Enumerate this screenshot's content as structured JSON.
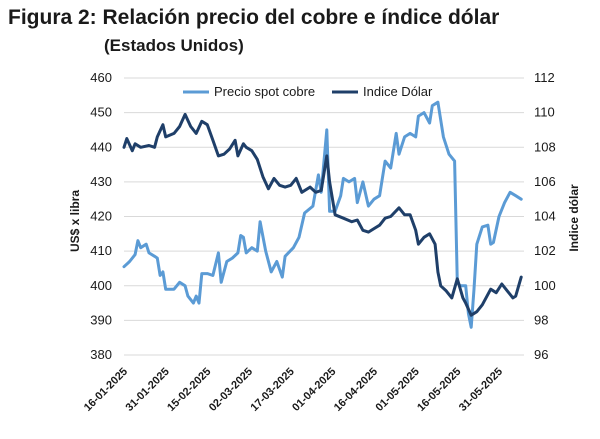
{
  "chart_data": {
    "type": "line",
    "title": "Figura 2: Relación precio del cobre e índice dólar",
    "subtitle": "(Estados Unidos)",
    "ylabel": "US$ x libra",
    "y2label": "Indice dólar",
    "ylim": [
      380,
      460
    ],
    "y2lim": [
      96,
      112
    ],
    "yticks": [
      380,
      390,
      400,
      410,
      420,
      430,
      440,
      450,
      460
    ],
    "y2ticks": [
      96,
      98,
      100,
      102,
      104,
      106,
      108,
      110,
      112
    ],
    "xlim": [
      "2025-01-16",
      "2025-06-09"
    ],
    "xticks": [
      "16-01-2025",
      "31-01-2025",
      "15-02-2025",
      "02-03-2025",
      "17-03-2025",
      "01-04-2025",
      "16-04-2025",
      "01-05-2025",
      "16-05-2025",
      "31-05-2025"
    ],
    "xtick_dates": [
      "2025-01-16",
      "2025-01-31",
      "2025-02-15",
      "2025-03-02",
      "2025-03-17",
      "2025-04-01",
      "2025-04-16",
      "2025-05-01",
      "2025-05-16",
      "2025-05-31"
    ],
    "grid": "horizontal",
    "legend": "top",
    "series": [
      {
        "name": "Precio spot cobre",
        "axis": "left",
        "color": "#5b9bd5",
        "points": [
          [
            "2025-01-16",
            405.5
          ],
          [
            "2025-01-18",
            407
          ],
          [
            "2025-01-20",
            409
          ],
          [
            "2025-01-21",
            413
          ],
          [
            "2025-01-22",
            411
          ],
          [
            "2025-01-24",
            412
          ],
          [
            "2025-01-25",
            409.5
          ],
          [
            "2025-01-27",
            408.5
          ],
          [
            "2025-01-28",
            408
          ],
          [
            "2025-01-29",
            403
          ],
          [
            "2025-01-30",
            404
          ],
          [
            "2025-01-31",
            399
          ],
          [
            "2025-02-03",
            399
          ],
          [
            "2025-02-05",
            401
          ],
          [
            "2025-02-07",
            400
          ],
          [
            "2025-02-08",
            397
          ],
          [
            "2025-02-10",
            395
          ],
          [
            "2025-02-11",
            397
          ],
          [
            "2025-02-12",
            395
          ],
          [
            "2025-02-13",
            403.5
          ],
          [
            "2025-02-15",
            403.5
          ],
          [
            "2025-02-17",
            403
          ],
          [
            "2025-02-19",
            409.5
          ],
          [
            "2025-02-20",
            401
          ],
          [
            "2025-02-22",
            407
          ],
          [
            "2025-02-24",
            408
          ],
          [
            "2025-02-26",
            409.5
          ],
          [
            "2025-02-27",
            414.5
          ],
          [
            "2025-02-28",
            414
          ],
          [
            "2025-03-01",
            409.5
          ],
          [
            "2025-03-03",
            411
          ],
          [
            "2025-03-05",
            410
          ],
          [
            "2025-03-06",
            418.5
          ],
          [
            "2025-03-08",
            410
          ],
          [
            "2025-03-10",
            404
          ],
          [
            "2025-03-12",
            407
          ],
          [
            "2025-03-14",
            402.5
          ],
          [
            "2025-03-15",
            408.5
          ],
          [
            "2025-03-18",
            411
          ],
          [
            "2025-03-20",
            414
          ],
          [
            "2025-03-22",
            421
          ],
          [
            "2025-03-25",
            423
          ],
          [
            "2025-03-27",
            432
          ],
          [
            "2025-03-28",
            427
          ],
          [
            "2025-03-30",
            445
          ],
          [
            "2025-03-31",
            421.5
          ],
          [
            "2025-04-02",
            421.5
          ],
          [
            "2025-04-04",
            426
          ],
          [
            "2025-04-05",
            431
          ],
          [
            "2025-04-07",
            430
          ],
          [
            "2025-04-09",
            431
          ],
          [
            "2025-04-10",
            424
          ],
          [
            "2025-04-12",
            430
          ],
          [
            "2025-04-14",
            423
          ],
          [
            "2025-04-16",
            425
          ],
          [
            "2025-04-18",
            426
          ],
          [
            "2025-04-20",
            436
          ],
          [
            "2025-04-22",
            434
          ],
          [
            "2025-04-24",
            444
          ],
          [
            "2025-04-25",
            438
          ],
          [
            "2025-04-27",
            443
          ],
          [
            "2025-04-29",
            444
          ],
          [
            "2025-05-01",
            443
          ],
          [
            "2025-05-02",
            449
          ],
          [
            "2025-05-04",
            450
          ],
          [
            "2025-05-06",
            447
          ],
          [
            "2025-05-07",
            452
          ],
          [
            "2025-05-09",
            453
          ],
          [
            "2025-05-11",
            443
          ],
          [
            "2025-05-13",
            438
          ],
          [
            "2025-05-15",
            436
          ],
          [
            "2025-05-16",
            401
          ],
          [
            "2025-05-17",
            400
          ],
          [
            "2025-05-19",
            400
          ],
          [
            "2025-05-20",
            392
          ],
          [
            "2025-05-21",
            388
          ],
          [
            "2025-05-22",
            399
          ],
          [
            "2025-05-23",
            412
          ],
          [
            "2025-05-25",
            417
          ],
          [
            "2025-05-27",
            417.5
          ],
          [
            "2025-05-28",
            412
          ],
          [
            "2025-05-29",
            412.5
          ],
          [
            "2025-05-31",
            420
          ],
          [
            "2025-06-02",
            424
          ],
          [
            "2025-06-04",
            427
          ],
          [
            "2025-06-06",
            426
          ],
          [
            "2025-06-08",
            425
          ]
        ]
      },
      {
        "name": "Indice Dólar",
        "axis": "right",
        "color": "#1f3f69",
        "points": [
          [
            "2025-01-16",
            108
          ],
          [
            "2025-01-17",
            108.5
          ],
          [
            "2025-01-19",
            107.8
          ],
          [
            "2025-01-20",
            108.2
          ],
          [
            "2025-01-22",
            108
          ],
          [
            "2025-01-25",
            108.1
          ],
          [
            "2025-01-27",
            108
          ],
          [
            "2025-01-28",
            108.6
          ],
          [
            "2025-01-30",
            109.3
          ],
          [
            "2025-01-31",
            108.6
          ],
          [
            "2025-02-03",
            108.8
          ],
          [
            "2025-02-05",
            109.2
          ],
          [
            "2025-02-07",
            109.9
          ],
          [
            "2025-02-09",
            109.2
          ],
          [
            "2025-02-11",
            108.8
          ],
          [
            "2025-02-13",
            109.5
          ],
          [
            "2025-02-15",
            109.3
          ],
          [
            "2025-02-17",
            108.4
          ],
          [
            "2025-02-19",
            107.5
          ],
          [
            "2025-02-21",
            107.6
          ],
          [
            "2025-02-23",
            107.9
          ],
          [
            "2025-02-25",
            108.4
          ],
          [
            "2025-02-26",
            107.5
          ],
          [
            "2025-02-28",
            108.2
          ],
          [
            "2025-03-01",
            108
          ],
          [
            "2025-03-03",
            107.8
          ],
          [
            "2025-03-05",
            107.3
          ],
          [
            "2025-03-07",
            106.3
          ],
          [
            "2025-03-09",
            105.6
          ],
          [
            "2025-03-11",
            106.2
          ],
          [
            "2025-03-13",
            105.8
          ],
          [
            "2025-03-15",
            105.7
          ],
          [
            "2025-03-17",
            105.8
          ],
          [
            "2025-03-19",
            106.2
          ],
          [
            "2025-03-21",
            105.4
          ],
          [
            "2025-03-24",
            105.7
          ],
          [
            "2025-03-26",
            105.4
          ],
          [
            "2025-03-28",
            105.5
          ],
          [
            "2025-03-30",
            107.5
          ],
          [
            "2025-03-31",
            106
          ],
          [
            "2025-04-02",
            104.1
          ],
          [
            "2025-04-05",
            103.9
          ],
          [
            "2025-04-08",
            103.7
          ],
          [
            "2025-04-10",
            103.8
          ],
          [
            "2025-04-12",
            103.2
          ],
          [
            "2025-04-14",
            103.1
          ],
          [
            "2025-04-16",
            103.3
          ],
          [
            "2025-04-18",
            103.5
          ],
          [
            "2025-04-20",
            103.9
          ],
          [
            "2025-04-22",
            104
          ],
          [
            "2025-04-25",
            104.5
          ],
          [
            "2025-04-27",
            104.1
          ],
          [
            "2025-04-29",
            104.1
          ],
          [
            "2025-05-01",
            103.2
          ],
          [
            "2025-05-02",
            102.4
          ],
          [
            "2025-05-04",
            102.8
          ],
          [
            "2025-05-06",
            103
          ],
          [
            "2025-05-08",
            102.4
          ],
          [
            "2025-05-09",
            100.8
          ],
          [
            "2025-05-10",
            100
          ],
          [
            "2025-05-12",
            99.7
          ],
          [
            "2025-05-14",
            99.3
          ],
          [
            "2025-05-16",
            100.4
          ],
          [
            "2025-05-18",
            99.3
          ],
          [
            "2025-05-19",
            99
          ],
          [
            "2025-05-21",
            98.3
          ],
          [
            "2025-05-23",
            98.5
          ],
          [
            "2025-05-25",
            98.9
          ],
          [
            "2025-05-28",
            99.8
          ],
          [
            "2025-05-30",
            99.6
          ],
          [
            "2025-06-01",
            100.1
          ],
          [
            "2025-06-03",
            99.7
          ],
          [
            "2025-06-05",
            99.3
          ],
          [
            "2025-06-06",
            99.4
          ],
          [
            "2025-06-08",
            100.5
          ]
        ]
      }
    ]
  }
}
